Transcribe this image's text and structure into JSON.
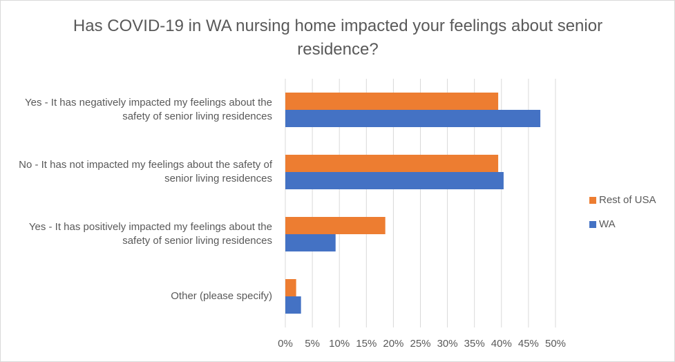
{
  "chart_data": {
    "type": "bar",
    "orientation": "horizontal",
    "title": "Has COVID-19 in WA nursing home impacted your feelings about senior residence?",
    "categories": [
      "Yes - It has negatively impacted my feelings about the safety of senior living residences",
      "No - It has not impacted my feelings about the safety of senior living residences",
      "Yes - It has positively impacted my feelings about the safety of senior living residences",
      "Other (please specify)"
    ],
    "series": [
      {
        "name": "Rest of USA",
        "color": "#ed7d31",
        "values": [
          39.4,
          39.4,
          18.5,
          2.0
        ]
      },
      {
        "name": "WA",
        "color": "#4472c4",
        "values": [
          47.2,
          40.4,
          9.3,
          2.9
        ]
      }
    ],
    "xlim": [
      0,
      50
    ],
    "xticks": [
      {
        "value": 0,
        "label": "0%"
      },
      {
        "value": 5,
        "label": "5%"
      },
      {
        "value": 10,
        "label": "10%"
      },
      {
        "value": 15,
        "label": "15%"
      },
      {
        "value": 20,
        "label": "20%"
      },
      {
        "value": 25,
        "label": "25%"
      },
      {
        "value": 30,
        "label": "30%"
      },
      {
        "value": 35,
        "label": "35%"
      },
      {
        "value": 40,
        "label": "40%"
      },
      {
        "value": 45,
        "label": "45%"
      },
      {
        "value": 50,
        "label": "50%"
      }
    ],
    "grid": true,
    "legend": "right"
  }
}
